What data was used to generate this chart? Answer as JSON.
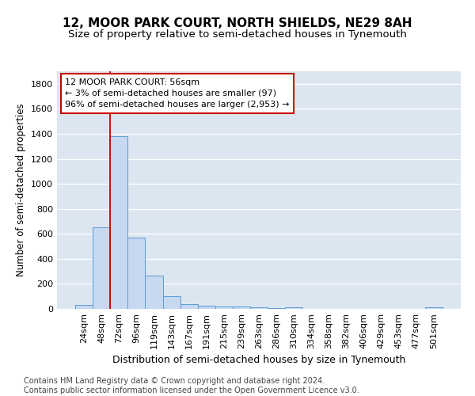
{
  "title1": "12, MOOR PARK COURT, NORTH SHIELDS, NE29 8AH",
  "title2": "Size of property relative to semi-detached houses in Tynemouth",
  "xlabel": "Distribution of semi-detached houses by size in Tynemouth",
  "ylabel": "Number of semi-detached properties",
  "categories": [
    "24sqm",
    "48sqm",
    "72sqm",
    "96sqm",
    "119sqm",
    "143sqm",
    "167sqm",
    "191sqm",
    "215sqm",
    "239sqm",
    "263sqm",
    "286sqm",
    "310sqm",
    "334sqm",
    "358sqm",
    "382sqm",
    "406sqm",
    "429sqm",
    "453sqm",
    "477sqm",
    "501sqm"
  ],
  "values": [
    30,
    650,
    1380,
    570,
    265,
    100,
    35,
    25,
    18,
    18,
    12,
    8,
    12,
    0,
    0,
    0,
    0,
    0,
    0,
    0,
    15
  ],
  "bar_color": "#c6d9f1",
  "bar_edge_color": "#5b9bd5",
  "red_line_x": 1.5,
  "annotation_text": "12 MOOR PARK COURT: 56sqm\n← 3% of semi-detached houses are smaller (97)\n96% of semi-detached houses are larger (2,953) →",
  "annotation_box_facecolor": "#ffffff",
  "annotation_box_edgecolor": "#cc0000",
  "ylim": [
    0,
    1900
  ],
  "yticks": [
    0,
    200,
    400,
    600,
    800,
    1000,
    1200,
    1400,
    1600,
    1800
  ],
  "background_color": "#dce6f1",
  "footer": "Contains HM Land Registry data © Crown copyright and database right 2024.\nContains public sector information licensed under the Open Government Licence v3.0.",
  "title1_fontsize": 11,
  "title2_fontsize": 9.5,
  "xlabel_fontsize": 9,
  "ylabel_fontsize": 8.5,
  "tick_fontsize": 8,
  "annotation_fontsize": 8,
  "footer_fontsize": 7
}
